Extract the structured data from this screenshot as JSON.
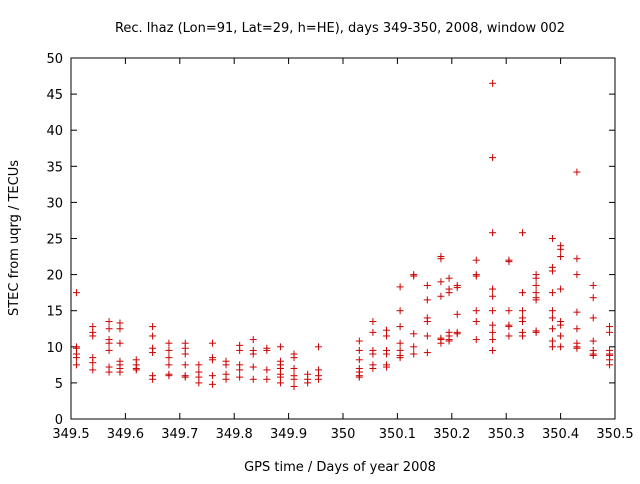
{
  "chart_data": {
    "type": "scatter",
    "title": "Rec. lhaz (Lon=91, Lat=29, h=HE), days 349-350, 2008, window 002",
    "xlabel": "GPS time / Days of year 2008",
    "ylabel": "STEC from uqrg / TECUs",
    "xlim": [
      349.5,
      350.5
    ],
    "ylim": [
      0,
      50
    ],
    "xticks": [
      349.5,
      349.6,
      349.7,
      349.8,
      349.9,
      350.0,
      350.1,
      350.2,
      350.3,
      350.4,
      350.5
    ],
    "xtick_labels": [
      "349.5",
      "349.6",
      "349.7",
      "349.8",
      "349.9",
      "350",
      "350.1",
      "350.2",
      "350.3",
      "350.4",
      "350.5"
    ],
    "yticks": [
      0,
      5,
      10,
      15,
      20,
      25,
      30,
      35,
      40,
      45,
      50
    ],
    "ytick_labels": [
      "0",
      "5",
      "10",
      "15",
      "20",
      "25",
      "30",
      "35",
      "40",
      "45",
      "50"
    ],
    "grid": false,
    "marker": "+",
    "marker_color": "#cc0000",
    "series": [
      {
        "x": [
          349.51,
          349.51,
          349.51,
          349.51,
          349.51,
          349.51,
          349.54,
          349.54,
          349.54,
          349.54,
          349.54,
          349.54,
          349.57,
          349.57,
          349.57,
          349.57,
          349.57,
          349.57,
          349.57,
          349.59,
          349.59,
          349.59,
          349.59,
          349.59,
          349.59,
          349.59,
          349.62,
          349.62,
          349.62,
          349.62,
          349.65,
          349.65,
          349.65,
          349.65,
          349.65,
          349.65,
          349.68,
          349.68,
          349.68,
          349.68,
          349.68,
          349.68,
          349.71,
          349.71,
          349.71,
          349.71,
          349.71,
          349.71,
          349.735,
          349.735,
          349.735,
          349.735,
          349.76,
          349.76,
          349.76,
          349.76,
          349.76,
          349.785,
          349.785,
          349.785,
          349.785,
          349.81,
          349.81,
          349.81,
          349.81,
          349.81,
          349.835,
          349.835,
          349.835,
          349.835,
          349.835,
          349.86,
          349.86,
          349.86,
          349.86,
          349.885,
          349.885,
          349.885,
          349.885,
          349.885,
          349.885,
          349.885,
          349.91,
          349.91,
          349.91,
          349.91,
          349.91,
          349.91,
          349.935,
          349.935,
          349.935,
          349.955,
          349.955,
          349.955,
          349.955,
          350.03,
          350.03,
          350.03,
          350.03,
          350.03,
          350.03,
          350.03,
          350.055,
          350.055,
          350.055,
          350.055,
          350.055,
          350.055,
          350.08,
          350.08,
          350.08,
          350.08,
          350.08,
          350.08,
          350.105,
          350.105,
          350.105,
          350.105,
          350.105,
          350.105,
          350.105,
          350.13,
          350.13,
          350.13,
          350.13,
          350.13,
          350.155,
          350.155,
          350.155,
          350.155,
          350.155,
          350.155,
          350.18,
          350.18,
          350.18,
          350.18,
          350.18,
          350.18,
          350.18,
          350.195,
          350.195,
          350.195,
          350.195,
          350.195,
          350.195,
          350.195,
          350.21,
          350.21,
          350.21,
          350.21,
          350.21,
          350.245,
          350.245,
          350.245,
          350.245,
          350.245,
          350.245,
          350.275,
          350.275,
          350.275,
          350.275,
          350.275,
          350.275,
          350.275,
          350.275,
          350.275,
          350.275,
          350.305,
          350.305,
          350.305,
          350.305,
          350.305,
          350.305,
          350.33,
          350.33,
          350.33,
          350.33,
          350.33,
          350.33,
          350.33,
          350.355,
          350.355,
          350.355,
          350.355,
          350.355,
          350.355,
          350.355,
          350.355,
          350.385,
          350.385,
          350.385,
          350.385,
          350.385,
          350.385,
          350.385,
          350.385,
          350.385,
          350.4,
          350.4,
          350.4,
          350.4,
          350.4,
          350.4,
          350.4,
          350.4,
          350.43,
          350.43,
          350.43,
          350.43,
          350.43,
          350.43,
          350.43,
          350.43,
          350.46,
          350.46,
          350.46,
          350.46,
          350.46,
          350.46,
          350.46,
          350.49,
          350.49,
          350.49,
          350.49,
          350.49,
          350.49,
          350.49
        ],
        "y": [
          17.5,
          9.8,
          8.5,
          7.5,
          9.0,
          10.0,
          12.8,
          12.0,
          11.5,
          8.5,
          6.8,
          7.8,
          13.5,
          10.5,
          9.5,
          7.2,
          6.5,
          11.0,
          12.5,
          13.3,
          12.5,
          10.5,
          8.0,
          7.0,
          6.5,
          7.5,
          8.2,
          7.5,
          7.0,
          6.8,
          12.8,
          11.5,
          9.8,
          9.2,
          6.0,
          5.5,
          10.5,
          9.5,
          8.5,
          7.5,
          6.0,
          6.2,
          10.5,
          9.8,
          9.0,
          7.5,
          6.0,
          5.8,
          7.5,
          6.5,
          5.8,
          5.0,
          10.5,
          8.5,
          8.2,
          6.0,
          4.8,
          8.0,
          7.5,
          6.2,
          5.5,
          10.2,
          9.5,
          7.5,
          6.8,
          5.8,
          11.0,
          9.5,
          9.0,
          7.2,
          5.5,
          9.8,
          9.5,
          6.8,
          5.5,
          10.0,
          8.0,
          7.5,
          7.0,
          6.2,
          5.8,
          5.0,
          9.0,
          8.5,
          7.0,
          6.0,
          5.5,
          4.5,
          6.2,
          5.5,
          5.0,
          10.0,
          6.8,
          6.0,
          5.5,
          10.8,
          9.5,
          8.2,
          7.0,
          6.5,
          6.0,
          5.8,
          13.5,
          12.0,
          9.5,
          9.0,
          7.5,
          7.0,
          12.3,
          11.5,
          9.5,
          9.0,
          7.5,
          7.2,
          18.3,
          15.0,
          12.8,
          10.5,
          9.5,
          8.8,
          8.5,
          20.0,
          19.8,
          11.8,
          10.0,
          9.0,
          18.5,
          16.5,
          14.0,
          13.5,
          11.5,
          9.2,
          22.5,
          22.2,
          19.0,
          17.0,
          11.0,
          10.5,
          11.2,
          19.5,
          18.0,
          17.5,
          12.0,
          11.5,
          11.0,
          10.8,
          18.5,
          18.2,
          14.5,
          12.0,
          11.8,
          22.0,
          20.0,
          19.8,
          15.0,
          13.5,
          11.0,
          46.5,
          36.2,
          25.8,
          18.0,
          17.0,
          15.0,
          13.0,
          12.0,
          11.0,
          9.5,
          22.0,
          21.8,
          15.0,
          13.0,
          12.8,
          11.5,
          25.8,
          17.5,
          15.0,
          14.0,
          13.5,
          12.0,
          11.5,
          20.0,
          19.5,
          18.5,
          17.5,
          16.8,
          16.5,
          12.2,
          12.0,
          25.0,
          21.0,
          20.5,
          17.5,
          15.0,
          14.0,
          12.5,
          10.8,
          10.0,
          24.0,
          23.5,
          22.5,
          18.0,
          13.5,
          13.0,
          11.5,
          10.0,
          34.2,
          22.2,
          20.0,
          14.8,
          12.5,
          10.5,
          10.0,
          9.8,
          18.5,
          16.8,
          14.0,
          10.8,
          9.5,
          9.0,
          8.8,
          12.8,
          12.0,
          9.5,
          9.0,
          8.8,
          8.2,
          7.5
        ]
      }
    ]
  }
}
